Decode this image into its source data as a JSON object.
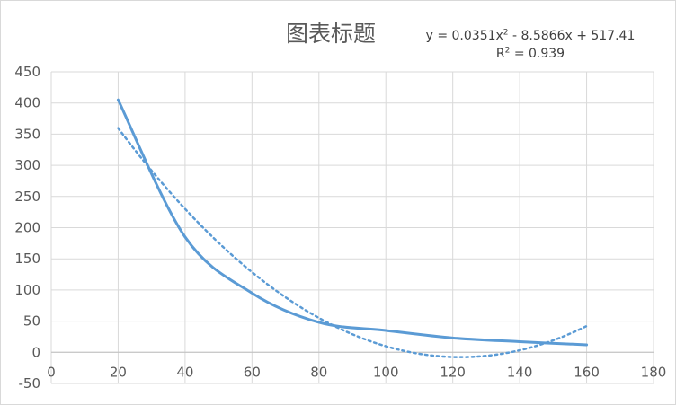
{
  "chart_data": {
    "type": "scatter",
    "title": "图表标题",
    "xlabel": "",
    "ylabel": "",
    "xlim": [
      0,
      180
    ],
    "ylim": [
      -50,
      450
    ],
    "x_ticks": [
      0,
      20,
      40,
      60,
      80,
      100,
      120,
      140,
      160,
      180
    ],
    "y_ticks": [
      -50,
      0,
      50,
      100,
      150,
      200,
      250,
      300,
      350,
      400,
      450
    ],
    "grid": true,
    "legend": "none",
    "series": [
      {
        "style": "smooth-line",
        "color": "#5b9bd5",
        "x": [
          20,
          40,
          60,
          80,
          100,
          120,
          140,
          160
        ],
        "y": [
          405,
          185,
          95,
          48,
          35,
          23,
          17,
          12
        ]
      }
    ],
    "trendline": {
      "type": "polynomial",
      "order": 2,
      "style": "dotted",
      "color": "#5b9bd5",
      "coefficients": [
        0.0351,
        -8.5866,
        517.41
      ],
      "x_range": [
        20,
        160
      ],
      "equation_parts": {
        "lead": "y = 0.0351x",
        "sup": "2",
        "tail": " - 8.5866x + 517.41"
      },
      "r2_parts": {
        "lead": "R",
        "sup": "2",
        "tail": " = 0.939"
      }
    }
  }
}
